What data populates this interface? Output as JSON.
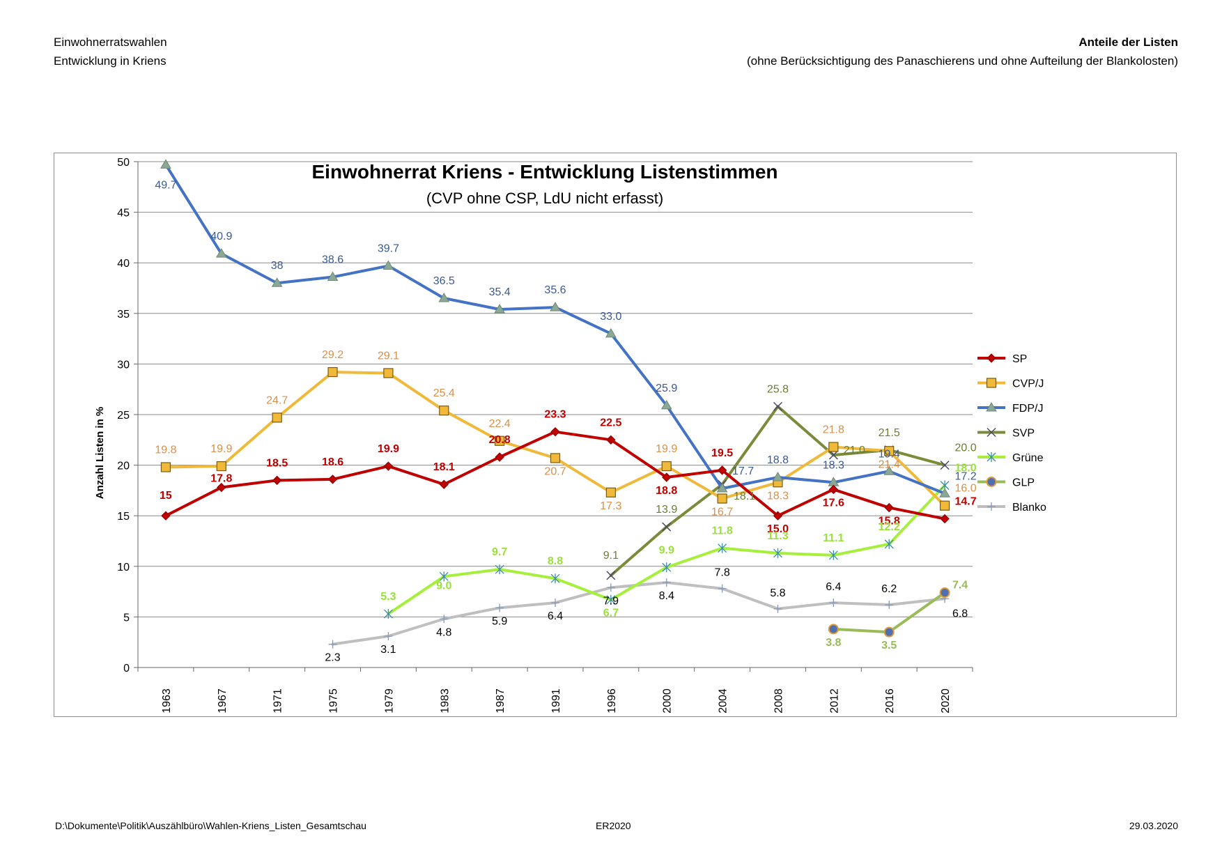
{
  "header": {
    "left_line1": "Einwohnerratswahlen",
    "left_line2": "Entwicklung in Kriens",
    "right_title": "Anteile der Listen",
    "right_subtitle": "(ohne Berücksichtigung des Panaschierens und ohne Aufteilung der Blankolosten)"
  },
  "footer": {
    "path": "D:\\Dokumente\\Politik\\Auszählbüro\\Wahlen-Kriens_Listen_Gesamtschau",
    "code": "ER2020",
    "date": "29.03.2020"
  },
  "chart_data": {
    "type": "line",
    "title": "Einwohnerrat Kriens - Entwicklung Listenstimmen",
    "subtitle": "(CVP ohne CSP, LdU nicht erfasst)",
    "xlabel": "",
    "ylabel": "Anzahl Listen in %",
    "ylim": [
      0,
      50
    ],
    "yticks": [
      0,
      5,
      10,
      15,
      20,
      25,
      30,
      35,
      40,
      45,
      50
    ],
    "categories": [
      "1963",
      "1967",
      "1971",
      "1975",
      "1979",
      "1983",
      "1987",
      "1991",
      "1996",
      "2000",
      "2004",
      "2008",
      "2012",
      "2016",
      "2020"
    ],
    "grid": true,
    "legend_position": "right",
    "series": [
      {
        "name": "SP",
        "color": "#c00000",
        "label_color": "#c00000",
        "marker": "diamond",
        "values": [
          15,
          17.8,
          18.5,
          18.6,
          19.9,
          18.1,
          20.8,
          23.3,
          22.5,
          18.8,
          19.5,
          15.0,
          17.6,
          15.8,
          14.7
        ],
        "labels": [
          "15",
          "17.8",
          "18.5",
          "18.6",
          "19.9",
          "18.1",
          "20.8",
          "23.3",
          "22.5",
          "18.8",
          "19.5",
          "15.0",
          "17.6",
          "15.8",
          "14.7"
        ]
      },
      {
        "name": "CVP/J",
        "color": "#f0b93a",
        "label_color": "#d9904a",
        "marker": "square",
        "values": [
          19.8,
          19.9,
          24.7,
          29.2,
          29.1,
          25.4,
          22.4,
          20.7,
          17.3,
          19.9,
          16.7,
          18.3,
          21.8,
          21.4,
          16.0
        ],
        "labels": [
          "19.8",
          "19.9",
          "24.7",
          "29.2",
          "29.1",
          "25.4",
          "22.4",
          "20.7",
          "17.3",
          "19.9",
          "16.7",
          "18.3",
          "21.8",
          "21.4",
          "16.0"
        ]
      },
      {
        "name": "FDP/J",
        "color": "#4472c4",
        "label_color": "#3b5a8f",
        "marker": "triangle",
        "values": [
          49.7,
          40.9,
          38,
          38.6,
          39.7,
          36.5,
          35.4,
          35.6,
          33.0,
          25.9,
          17.7,
          18.8,
          18.3,
          19.4,
          17.2
        ],
        "labels": [
          "49.7",
          "40.9",
          "38",
          "38.6",
          "39.7",
          "36.5",
          "35.4",
          "35.6",
          "33.0",
          "25.9",
          "17.7",
          "18.8",
          "18.3",
          "19.4",
          "17.2"
        ]
      },
      {
        "name": "SVP",
        "color": "#7a8b3a",
        "label_color": "#6b7d35",
        "marker": "x",
        "values": [
          null,
          null,
          null,
          null,
          null,
          null,
          null,
          null,
          9.1,
          13.9,
          18.1,
          25.8,
          21.0,
          21.5,
          20.0
        ],
        "labels": [
          null,
          null,
          null,
          null,
          null,
          null,
          null,
          null,
          "9.1",
          "13.9",
          "18.1",
          "25.8",
          "21.0",
          "21.5",
          "20.0"
        ]
      },
      {
        "name": "Grüne",
        "color": "#a6f03c",
        "label_color": "#9ae03c",
        "marker": "star",
        "values": [
          null,
          null,
          null,
          null,
          5.3,
          9.0,
          9.7,
          8.8,
          6.7,
          9.9,
          11.8,
          11.3,
          11.1,
          12.2,
          18.0
        ],
        "labels": [
          null,
          null,
          null,
          null,
          "5.3",
          "9.0",
          "9.7",
          "8.8",
          "6.7",
          "9.9",
          "11.8",
          "11.3",
          "11.1",
          "12.2",
          "18.0"
        ]
      },
      {
        "name": "GLP",
        "color": "#9bbb59",
        "label_color": "#9bbb59",
        "marker": "circle",
        "values": [
          null,
          null,
          null,
          null,
          null,
          null,
          null,
          null,
          null,
          null,
          null,
          null,
          3.8,
          3.5,
          7.4
        ],
        "labels": [
          null,
          null,
          null,
          null,
          null,
          null,
          null,
          null,
          null,
          null,
          null,
          null,
          "3.8",
          "3.5",
          "7.4"
        ]
      },
      {
        "name": "Blanko",
        "color": "#bfbfbf",
        "label_color": "#000000",
        "marker": "plus",
        "values": [
          null,
          null,
          null,
          2.3,
          3.1,
          4.8,
          5.9,
          6.4,
          7.9,
          8.4,
          7.8,
          5.8,
          6.4,
          6.2,
          6.8
        ],
        "labels": [
          null,
          null,
          null,
          "2.3",
          "3.1",
          "4.8",
          "5.9",
          "6.4",
          "7.9",
          "8.4",
          "7.8",
          "5.8",
          "6.4",
          "6.2",
          "6.8"
        ]
      }
    ]
  }
}
